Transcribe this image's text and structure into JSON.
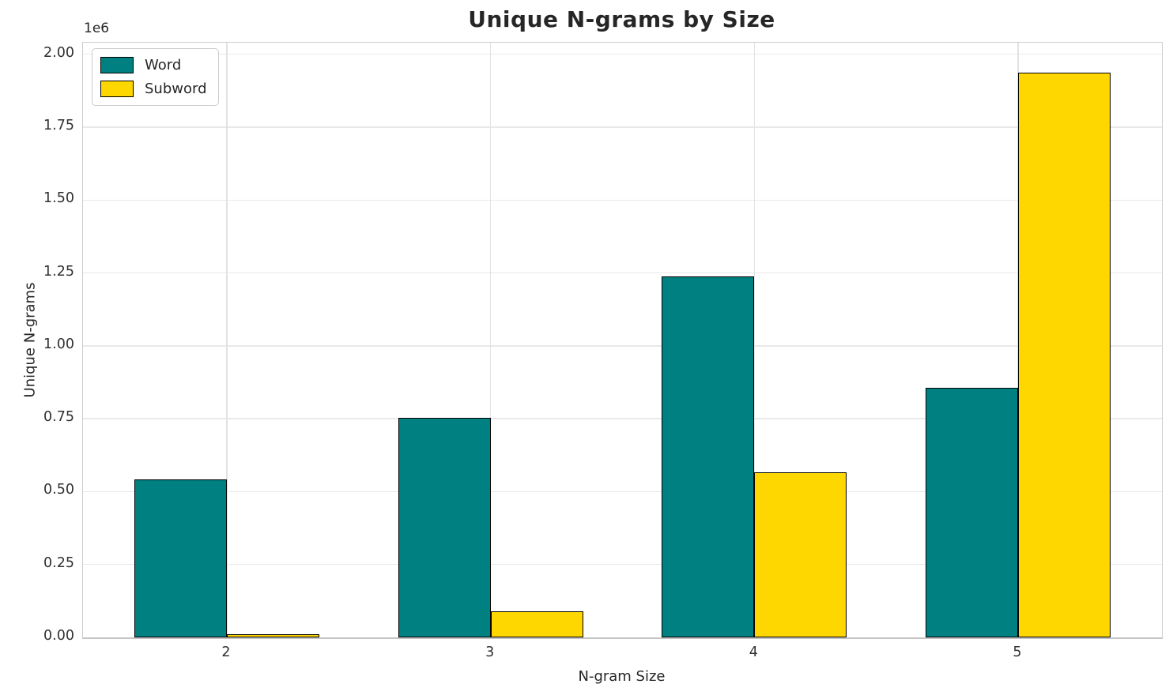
{
  "chart_data": {
    "type": "bar",
    "title": "Unique N-grams by Size",
    "xlabel": "N-gram Size",
    "ylabel": "Unique N-grams",
    "offset_text": "1e6",
    "categories": [
      "2",
      "3",
      "4",
      "5"
    ],
    "series": [
      {
        "name": "Word",
        "color": "#008080",
        "values": [
          543000,
          752000,
          1238000,
          856000
        ]
      },
      {
        "name": "Subword",
        "color": "#FFD700",
        "values": [
          10000,
          89000,
          567000,
          1938000
        ]
      }
    ],
    "bar_edge_color": "#000000",
    "ylim": [
      0,
      2040000
    ],
    "yticks": {
      "values": [
        0,
        250000,
        500000,
        750000,
        1000000,
        1250000,
        1500000,
        1750000,
        2000000
      ],
      "labels": [
        "0.00",
        "0.25",
        "0.50",
        "0.75",
        "1.00",
        "1.25",
        "1.50",
        "1.75",
        "2.00"
      ]
    },
    "grid": true,
    "legend_position": "upper left"
  }
}
